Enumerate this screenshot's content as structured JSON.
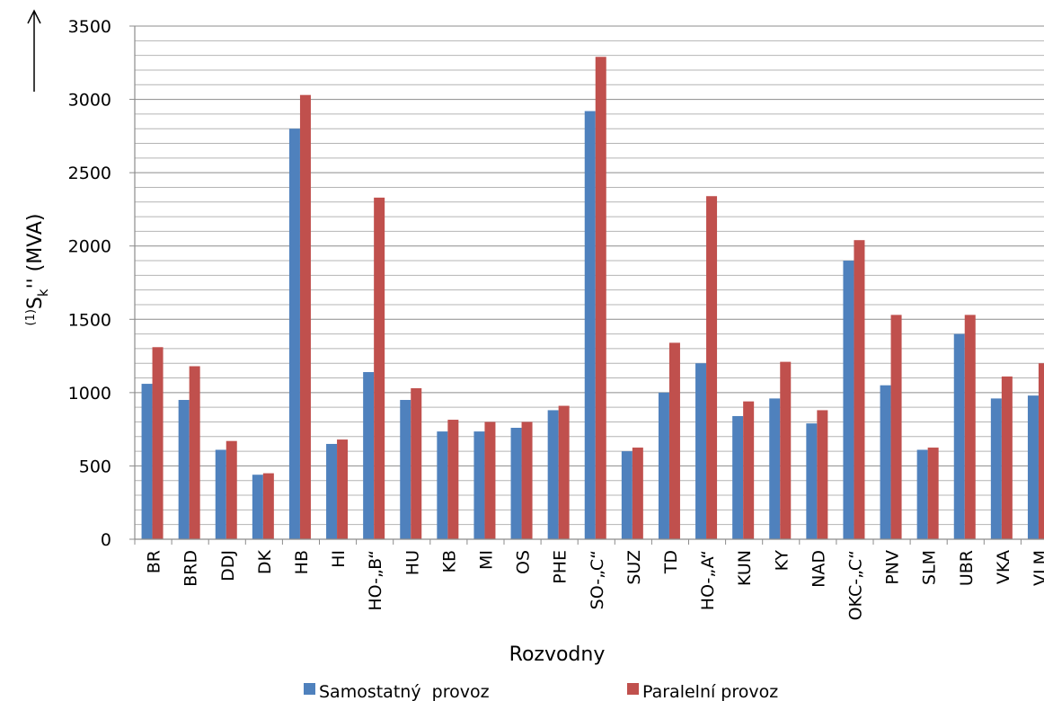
{
  "chart_data": {
    "type": "bar",
    "title": "",
    "xlabel": "Rozvodny",
    "ylabel": "(1)Sk'' (MVA)",
    "ylabel_parts": {
      "sup": "(1)",
      "main": "S",
      "sub": "k",
      "after": "''  (MVA)"
    },
    "ylim": [
      0,
      3500
    ],
    "yticks": [
      0,
      500,
      1000,
      1500,
      2000,
      2500,
      3000,
      3500
    ],
    "minor_grid_step": 100,
    "grid": true,
    "legend_position": "bottom",
    "categories": [
      "BR",
      "BRD",
      "DDJ",
      "DK",
      "HB",
      "HI",
      "HO-„B“",
      "HU",
      "KB",
      "MI",
      "OS",
      "PHE",
      "SO-„C“",
      "SUZ",
      "TD",
      "HO-„A“",
      "KUN",
      "KY",
      "NAD",
      "OKC-„C“",
      "PNV",
      "SLM",
      "UBR",
      "VKA",
      "VLM"
    ],
    "series": [
      {
        "name": "Samostatný  provoz",
        "color": "#4f81bd",
        "values": [
          1060,
          950,
          610,
          440,
          2800,
          650,
          1140,
          950,
          735,
          735,
          760,
          880,
          2920,
          600,
          1000,
          1200,
          840,
          960,
          790,
          1900,
          1050,
          610,
          1400,
          960,
          980
        ]
      },
      {
        "name": "Paralelní provoz",
        "color": "#c0504d",
        "values": [
          1310,
          1180,
          670,
          450,
          3030,
          680,
          2330,
          1030,
          815,
          800,
          800,
          910,
          3290,
          625,
          1340,
          2340,
          940,
          1210,
          880,
          2040,
          1530,
          625,
          1530,
          1110,
          1200
        ]
      }
    ]
  }
}
